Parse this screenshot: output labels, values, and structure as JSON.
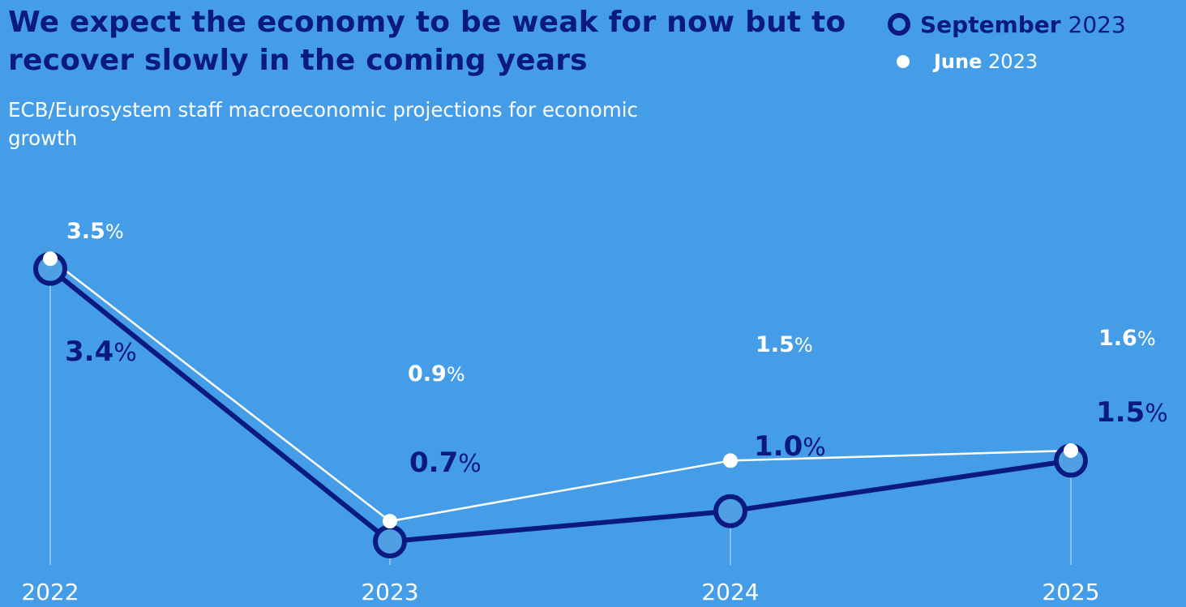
{
  "header": {
    "title": "We expect the economy to be weak for now but to recover slowly in the coming years",
    "subtitle": "ECB/Eurosystem staff macroeconomic projections for economic growth"
  },
  "legend": {
    "september": {
      "month": "September",
      "year": "2023"
    },
    "june": {
      "month": "June",
      "year": "2023"
    }
  },
  "colors": {
    "background": "#449DE6",
    "september": "#0B1A80",
    "june": "#FFFFFF"
  },
  "chart_data": {
    "type": "line",
    "title": "We expect the economy to be weak for now but to recover slowly in the coming years",
    "subtitle": "ECB/Eurosystem staff macroeconomic projections for economic growth",
    "x": [
      "2022",
      "2023",
      "2024",
      "2025"
    ],
    "unit": "%",
    "ylim": [
      0,
      4
    ],
    "grid": false,
    "legend_position": "top-right",
    "series": [
      {
        "name": "September 2023",
        "values": [
          3.4,
          0.7,
          1.0,
          1.5
        ],
        "labels": [
          "3.4",
          "0.7",
          "1.0",
          "1.5"
        ]
      },
      {
        "name": "June 2023",
        "values": [
          3.5,
          0.9,
          1.5,
          1.6
        ],
        "labels": [
          "3.5",
          "0.9",
          "1.5",
          "1.6"
        ]
      }
    ]
  }
}
